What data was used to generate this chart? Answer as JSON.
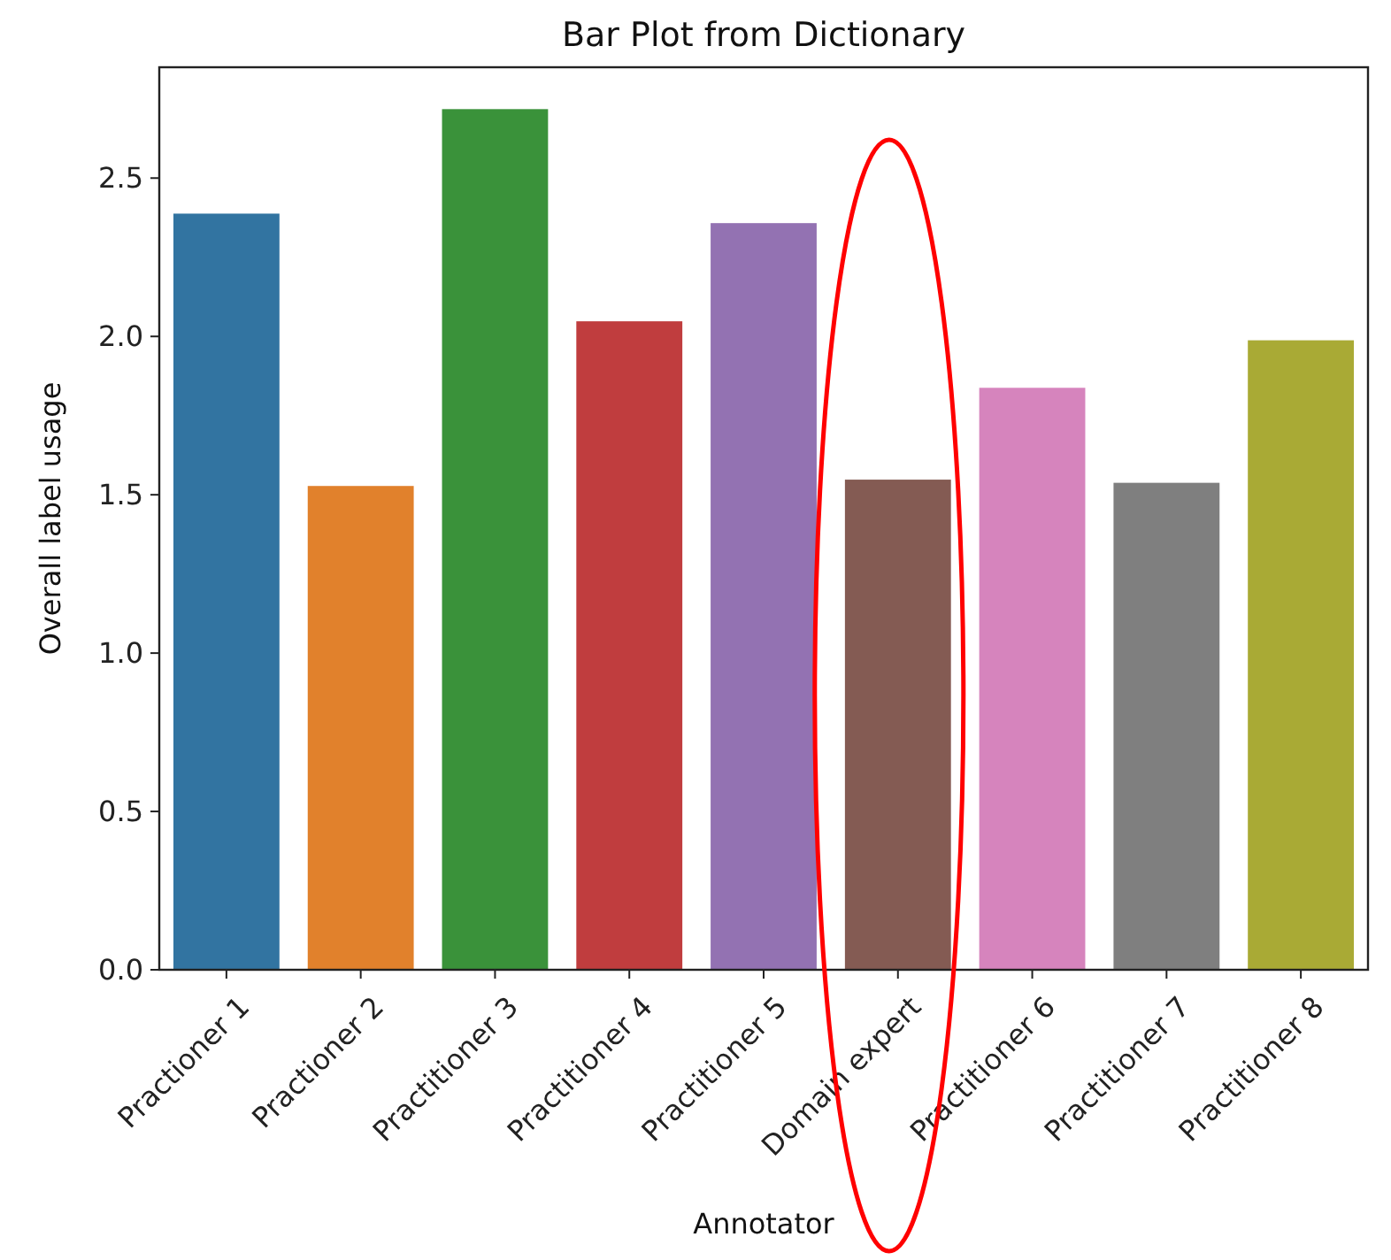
{
  "chart_data": {
    "type": "bar",
    "title": "Bar Plot from Dictionary",
    "xlabel": "Annotator",
    "ylabel": "Overall label usage",
    "categories": [
      "Practioner 1",
      "Practioner 2",
      "Practitioner 3",
      "Practitioner 4",
      "Practitioner 5",
      "Domain expert",
      "Practitioner 6",
      "Practitioner 7",
      "Practitioner 8"
    ],
    "values": [
      2.39,
      1.53,
      2.72,
      2.05,
      2.36,
      1.55,
      1.84,
      1.54,
      1.99
    ],
    "colors": [
      "#3274a1",
      "#e1812c",
      "#3a923a",
      "#c03d3e",
      "#9372b2",
      "#845b53",
      "#d684bd",
      "#7f7f7f",
      "#a9aa35"
    ],
    "ylim": [
      0,
      2.85
    ],
    "yticks": [
      {
        "value": 0,
        "label": "0.0"
      },
      {
        "value": 0.5,
        "label": "0.5"
      },
      {
        "value": 1,
        "label": "1.0"
      },
      {
        "value": 1.5,
        "label": "1.5"
      },
      {
        "value": 2,
        "label": "2.0"
      },
      {
        "value": 2.5,
        "label": "2.5"
      }
    ]
  }
}
